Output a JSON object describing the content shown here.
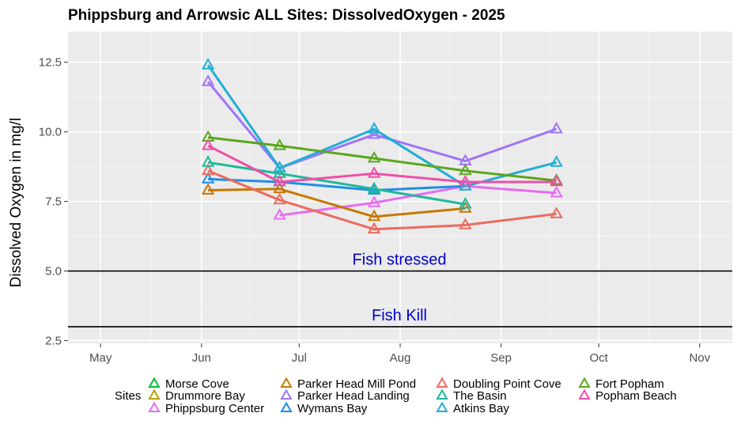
{
  "chart_data": {
    "type": "line",
    "title": "Phippsburg  and Arrowsic ALL Sites: DissolvedOxygen - 2025",
    "xlabel": "",
    "ylabel": "Dissolved Oxygen in mg/l",
    "x_ticks": [
      {
        "label": "May",
        "date": "2025-05-01"
      },
      {
        "label": "Jun",
        "date": "2025-06-01"
      },
      {
        "label": "Jul",
        "date": "2025-07-01"
      },
      {
        "label": "Aug",
        "date": "2025-08-01"
      },
      {
        "label": "Sep",
        "date": "2025-09-01"
      },
      {
        "label": "Oct",
        "date": "2025-10-01"
      },
      {
        "label": "Nov",
        "date": "2025-11-01"
      }
    ],
    "xlim": [
      "2025-04-21",
      "2025-11-11"
    ],
    "y_ticks": [
      2.5,
      5.0,
      7.5,
      10.0,
      12.5
    ],
    "y_tick_labels": [
      "2.5",
      "5.0",
      "7.5",
      "10.0",
      "12.5"
    ],
    "ylim": [
      2.4,
      13.6
    ],
    "grid": true,
    "legend": {
      "title": "Sites",
      "position": "bottom"
    },
    "reference_lines": [
      {
        "y": 5.0,
        "label": "Fish stressed"
      },
      {
        "y": 3.0,
        "label": "Fish Kill"
      }
    ],
    "series": [
      {
        "name": "Morse Cove",
        "color": "#00BA38",
        "points": []
      },
      {
        "name": "Drummore Bay",
        "color": "#B79F00",
        "points": []
      },
      {
        "name": "Phippsburg Center",
        "color": "#E76BF3",
        "points": [
          {
            "x": "2025-06-25",
            "y": 7.0
          },
          {
            "x": "2025-07-24",
            "y": 7.45
          },
          {
            "x": "2025-08-21",
            "y": 8.05
          },
          {
            "x": "2025-09-18",
            "y": 7.8
          }
        ]
      },
      {
        "name": "Parker Head Mill Pond",
        "color": "#C77800",
        "points": [
          {
            "x": "2025-06-03",
            "y": 7.9
          },
          {
            "x": "2025-06-25",
            "y": 7.95
          },
          {
            "x": "2025-07-24",
            "y": 6.95
          },
          {
            "x": "2025-08-21",
            "y": 7.25
          }
        ]
      },
      {
        "name": "Parker Head Landing",
        "color": "#9F75F5",
        "points": [
          {
            "x": "2025-06-03",
            "y": 11.8
          },
          {
            "x": "2025-06-25",
            "y": 8.7
          },
          {
            "x": "2025-07-24",
            "y": 9.9
          },
          {
            "x": "2025-08-21",
            "y": 8.95
          },
          {
            "x": "2025-09-18",
            "y": 10.1
          }
        ]
      },
      {
        "name": "Wymans Bay",
        "color": "#1F8EE6",
        "points": [
          {
            "x": "2025-06-03",
            "y": 8.3
          },
          {
            "x": "2025-06-25",
            "y": 8.2
          },
          {
            "x": "2025-07-24",
            "y": 7.9
          },
          {
            "x": "2025-08-21",
            "y": 8.05
          }
        ]
      },
      {
        "name": "Doubling Point Cove",
        "color": "#EB6B5E",
        "points": [
          {
            "x": "2025-06-03",
            "y": 8.6
          },
          {
            "x": "2025-06-25",
            "y": 7.55
          },
          {
            "x": "2025-07-24",
            "y": 6.5
          },
          {
            "x": "2025-08-21",
            "y": 6.65
          },
          {
            "x": "2025-09-18",
            "y": 7.05
          }
        ]
      },
      {
        "name": "The Basin",
        "color": "#1FB79A",
        "points": [
          {
            "x": "2025-06-03",
            "y": 8.9
          },
          {
            "x": "2025-06-25",
            "y": 8.5
          },
          {
            "x": "2025-07-24",
            "y": 7.95
          },
          {
            "x": "2025-08-21",
            "y": 7.4
          }
        ]
      },
      {
        "name": "Atkins Bay",
        "color": "#22AED6",
        "points": [
          {
            "x": "2025-06-03",
            "y": 12.4
          },
          {
            "x": "2025-06-25",
            "y": 8.7
          },
          {
            "x": "2025-07-24",
            "y": 10.1
          },
          {
            "x": "2025-08-21",
            "y": 8.05
          },
          {
            "x": "2025-09-18",
            "y": 8.9
          }
        ]
      },
      {
        "name": "Fort Popham",
        "color": "#5BA61D",
        "points": [
          {
            "x": "2025-06-03",
            "y": 9.8
          },
          {
            "x": "2025-06-25",
            "y": 9.5
          },
          {
            "x": "2025-07-24",
            "y": 9.05
          },
          {
            "x": "2025-08-21",
            "y": 8.6
          },
          {
            "x": "2025-09-18",
            "y": 8.25
          }
        ]
      },
      {
        "name": "Popham Beach",
        "color": "#EE4FA8",
        "points": [
          {
            "x": "2025-06-03",
            "y": 9.5
          },
          {
            "x": "2025-06-25",
            "y": 8.2
          },
          {
            "x": "2025-07-24",
            "y": 8.5
          },
          {
            "x": "2025-08-21",
            "y": 8.2
          },
          {
            "x": "2025-09-18",
            "y": 8.2
          }
        ]
      }
    ]
  }
}
